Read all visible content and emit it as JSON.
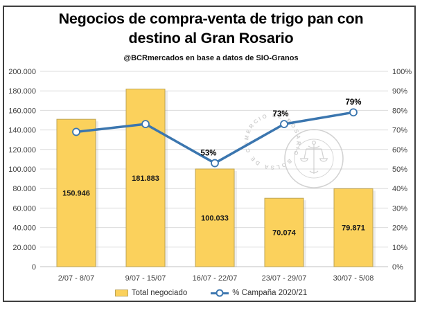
{
  "chart_data": {
    "type": "bar",
    "combo": "bar+line",
    "title": "Negocios de compra-venta de trigo pan con destino al Gran Rosario",
    "subtitle": "@BCRmercados en base a datos de SIO-Granos",
    "categories": [
      "2/07 - 8/07",
      "9/07 - 15/07",
      "16/07 - 22/07",
      "23/07 - 29/07",
      "30/07 - 5/08"
    ],
    "series": [
      {
        "name": "Total negociado",
        "type": "bar",
        "axis": "left",
        "values": [
          150946,
          181883,
          100033,
          70074,
          79871
        ],
        "data_labels": [
          "150.946",
          "181.883",
          "100.033",
          "70.074",
          "79.871"
        ],
        "fill_color": "#FBD15C",
        "border_color": "#BDA455"
      },
      {
        "name": "% Campaña 2020/21",
        "type": "line",
        "axis": "right",
        "values": [
          69,
          73,
          53,
          73,
          79
        ],
        "data_labels": [
          "",
          "",
          "53%",
          "73%",
          "79%"
        ],
        "line_color": "#3B76AF",
        "marker_fill": "#FFFFFF"
      }
    ],
    "left_axis": {
      "min": 0,
      "max": 200000,
      "step": 20000,
      "tick_labels": [
        "200.000",
        "180.000",
        "160.000",
        "140.000",
        "120.000",
        "100.000",
        "80.000",
        "60.000",
        "40.000",
        "20.000",
        "0"
      ]
    },
    "right_axis": {
      "min": 0,
      "max": 100,
      "step": 10,
      "tick_labels": [
        "100%",
        "90%",
        "80%",
        "70%",
        "60%",
        "50%",
        "40%",
        "30%",
        "20%",
        "10%",
        "0%"
      ]
    },
    "grid": "horizontal",
    "legend_position": "bottom",
    "watermark_text": "BOLSA DE COMERCIO DE ROSARIO",
    "colors": {
      "grid": "#DCDCDC",
      "axis_line": "#C0C0C0",
      "axis_text": "#404040",
      "bar_label_text": "#1A1A1A",
      "point_label_text": "#000000",
      "watermark": "#C6C6C6",
      "frame_border": "#3F3F3F"
    }
  }
}
